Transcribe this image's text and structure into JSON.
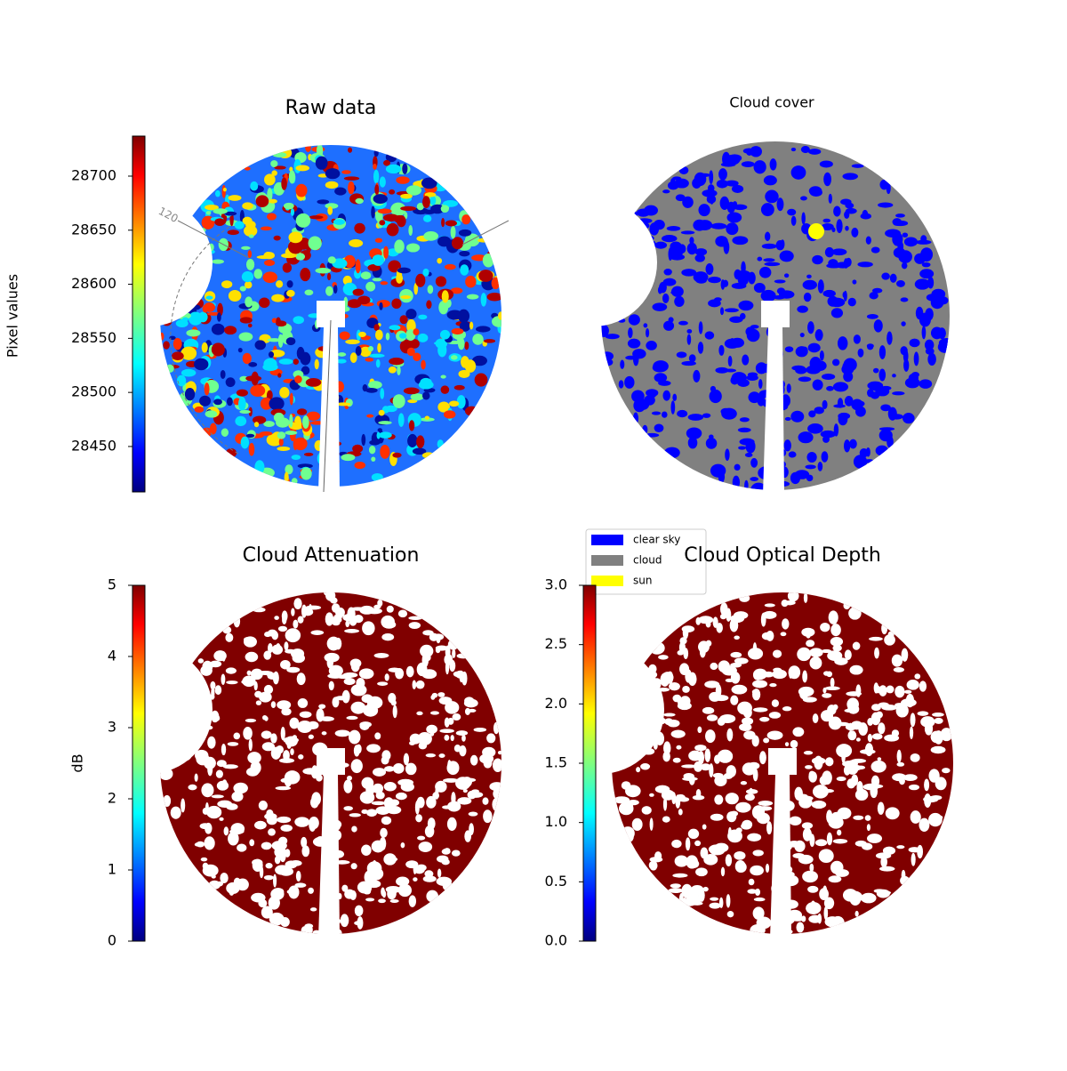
{
  "chart_data": [
    {
      "type": "image",
      "title": "Raw data",
      "colorbar_label": "Pixel values",
      "ylim": [
        28408,
        28737
      ],
      "yticks": [
        28450,
        28500,
        28550,
        28600,
        28650,
        28700
      ],
      "annotation": "120"
    },
    {
      "type": "image",
      "title": "Cloud cover",
      "legend": [
        {
          "name": "clear sky",
          "color": "#0000ff"
        },
        {
          "name": "cloud",
          "color": "#808080"
        },
        {
          "name": "sun",
          "color": "#ffff00"
        }
      ]
    },
    {
      "type": "image",
      "title": "Cloud Attenuation",
      "colorbar_label": "dB",
      "ylim": [
        0,
        5
      ],
      "yticks": [
        0,
        1,
        2,
        3,
        4,
        5
      ]
    },
    {
      "type": "image",
      "title": "Cloud Optical Depth",
      "ylim": [
        0,
        3
      ],
      "yticks": [
        {
          "value": 0,
          "label": "0.0"
        },
        0.5,
        {
          "value": 1,
          "label": "1.0"
        },
        1.5,
        {
          "value": 2,
          "label": "2.0"
        },
        2.5,
        {
          "value": 3,
          "label": "3.0"
        }
      ]
    }
  ]
}
